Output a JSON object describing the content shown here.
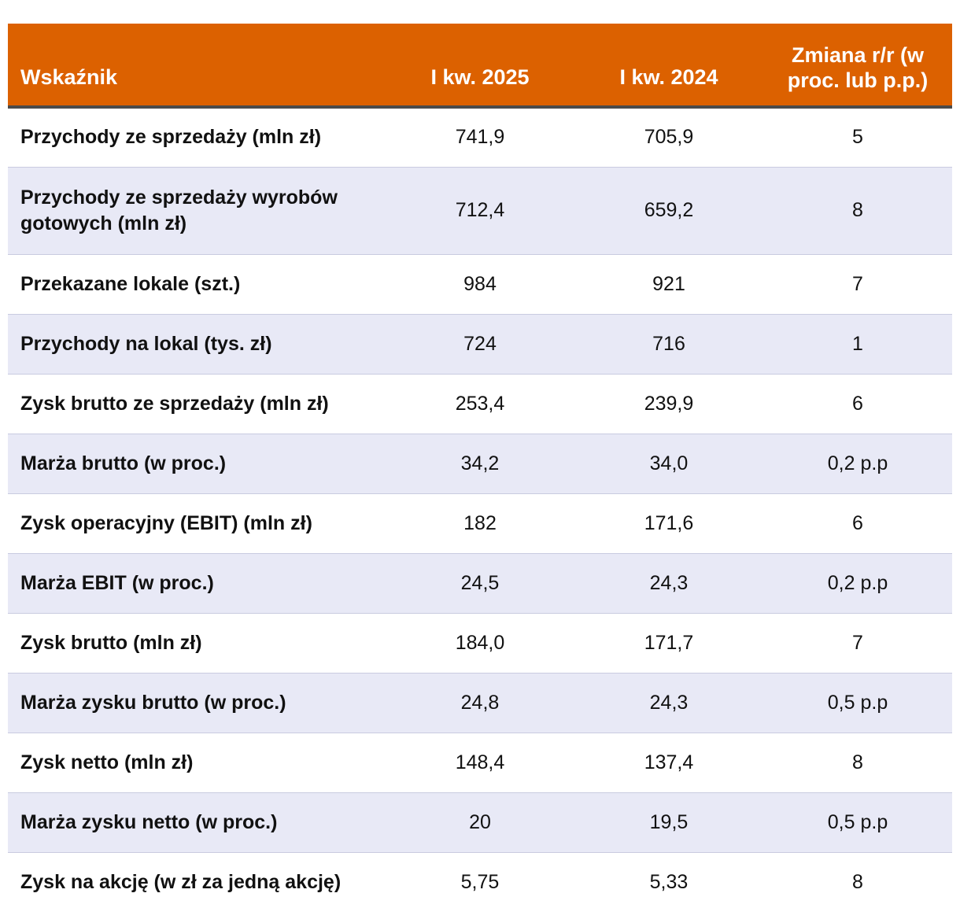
{
  "table": {
    "headers": [
      "Wskaźnik",
      "I kw. 2025",
      "I kw. 2024",
      "Zmiana r/r (w proc. lub p.p.)"
    ],
    "rows": [
      [
        "Przychody ze sprzedaży (mln zł)",
        "741,9",
        "705,9",
        "5"
      ],
      [
        "Przychody ze sprzedaży wyrobów gotowych (mln zł)",
        "712,4",
        "659,2",
        "8"
      ],
      [
        "Przekazane lokale (szt.)",
        "984",
        "921",
        "7"
      ],
      [
        "Przychody na lokal (tys. zł)",
        "724",
        "716",
        "1"
      ],
      [
        "Zysk brutto ze sprzedaży (mln zł)",
        "253,4",
        "239,9",
        "6"
      ],
      [
        "Marża brutto (w proc.)",
        "34,2",
        "34,0",
        "0,2 p.p"
      ],
      [
        "Zysk operacyjny (EBIT) (mln zł)",
        "182",
        "171,6",
        "6"
      ],
      [
        "Marża EBIT (w proc.)",
        "24,5",
        "24,3",
        "0,2 p.p"
      ],
      [
        "Zysk brutto (mln zł)",
        "184,0",
        "171,7",
        "7"
      ],
      [
        "Marża zysku brutto (w proc.)",
        "24,8",
        "24,3",
        "0,5 p.p"
      ],
      [
        "Zysk netto (mln zł)",
        "148,4",
        "137,4",
        "8"
      ],
      [
        "Marża zysku netto (w proc.)",
        "20",
        "19,5",
        "0,5 p.p"
      ],
      [
        "Zysk na akcję (w zł za jedną akcję)",
        "5,75",
        "5,33",
        "8"
      ]
    ]
  },
  "colors": {
    "header_bg": "#dc6100",
    "header_text": "#ffffff",
    "stripe": "#e8e9f6",
    "divider": "#4a4a4a"
  }
}
